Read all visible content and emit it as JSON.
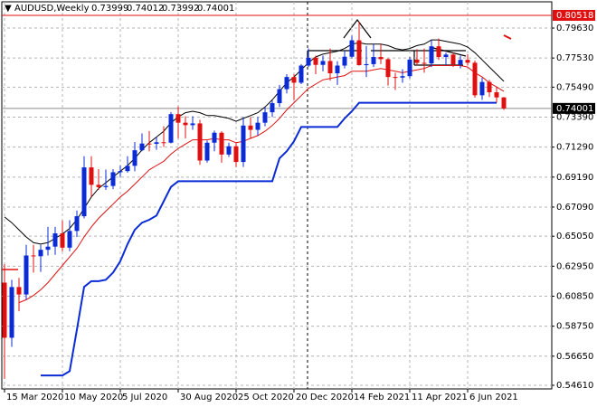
{
  "chart_data": {
    "type": "candlestick",
    "symbol": "AUDUSD,Weekly",
    "quote": [
      0.73999,
      0.74012,
      0.73992,
      0.74001
    ],
    "bull_color": "#0a2bd6",
    "bear_color": "#e01010",
    "grid": true,
    "ylim": [
      0.54357,
      0.81466
    ],
    "xlim": [
      -0.375,
      75.625
    ],
    "yticks": [
      {
        "value": 0.7963,
        "label": "0.79630"
      },
      {
        "value": 0.7753,
        "label": "0.77530"
      },
      {
        "value": 0.7549,
        "label": "0.75490"
      },
      {
        "value": 0.7339,
        "label": "0.73390"
      },
      {
        "value": 0.7129,
        "label": "0.71290"
      },
      {
        "value": 0.6919,
        "label": "0.69190"
      },
      {
        "value": 0.6709,
        "label": "0.67090"
      },
      {
        "value": 0.6505,
        "label": "0.65050"
      },
      {
        "value": 0.6295,
        "label": "0.62950"
      },
      {
        "value": 0.6085,
        "label": "0.60850"
      },
      {
        "value": 0.5875,
        "label": "0.58750"
      },
      {
        "value": 0.5665,
        "label": "0.56650"
      },
      {
        "value": 0.5461,
        "label": "0.54610"
      }
    ],
    "xticks": [
      {
        "value": 0,
        "label": "15 Mar 2020"
      },
      {
        "value": 8,
        "label": "10 May 2020"
      },
      {
        "value": 16,
        "label": "5 Jul 2020"
      },
      {
        "value": 24,
        "label": "30 Aug 2020"
      },
      {
        "value": 32,
        "label": "25 Oct 2020"
      },
      {
        "value": 40,
        "label": "20 Dec 2020"
      },
      {
        "value": 48,
        "label": "14 Feb 2021"
      },
      {
        "value": 56,
        "label": "11 Apr 2021"
      },
      {
        "value": 64,
        "label": "6 Jun 2021"
      }
    ],
    "open": [
      0.618,
      0.5794,
      0.6149,
      0.6097,
      0.637,
      0.6365,
      0.641,
      0.6432,
      0.6525,
      0.6425,
      0.6542,
      0.6645,
      0.6987,
      0.6865,
      0.6849,
      0.6857,
      0.6953,
      0.6961,
      0.6998,
      0.7107,
      0.7154,
      0.7152,
      0.7163,
      0.716,
      0.736,
      0.73,
      0.7283,
      0.7295,
      0.7035,
      0.716,
      0.723,
      0.7077,
      0.7135,
      0.7025,
      0.728,
      0.725,
      0.73,
      0.7373,
      0.7437,
      0.7535,
      0.762,
      0.758,
      0.77,
      0.7755,
      0.7705,
      0.7732,
      0.7646,
      0.77,
      0.7762,
      0.7877,
      0.7703,
      0.771,
      0.776,
      0.7745,
      0.762,
      0.7616,
      0.7626,
      0.7742,
      0.7719,
      0.7715,
      0.7835,
      0.776,
      0.7777,
      0.7708,
      0.774,
      0.772,
      0.7492,
      0.7585,
      0.7513,
      0.7477
    ],
    "high": [
      0.631,
      0.62,
      0.6213,
      0.6445,
      0.6445,
      0.6445,
      0.657,
      0.657,
      0.6615,
      0.6617,
      0.6685,
      0.7065,
      0.7065,
      0.6975,
      0.6972,
      0.6975,
      0.7,
      0.7065,
      0.7165,
      0.7225,
      0.7242,
      0.72,
      0.7275,
      0.7375,
      0.7414,
      0.7345,
      0.7345,
      0.732,
      0.7175,
      0.7245,
      0.724,
      0.716,
      0.716,
      0.734,
      0.734,
      0.734,
      0.741,
      0.7455,
      0.7565,
      0.764,
      0.764,
      0.771,
      0.782,
      0.777,
      0.777,
      0.782,
      0.773,
      0.7805,
      0.791,
      0.8007,
      0.7837,
      0.785,
      0.785,
      0.775,
      0.765,
      0.7675,
      0.776,
      0.7815,
      0.782,
      0.788,
      0.789,
      0.779,
      0.779,
      0.777,
      0.778,
      0.7735,
      0.7615,
      0.76,
      0.755,
      0.748
    ],
    "low": [
      0.5506,
      0.573,
      0.598,
      0.606,
      0.625,
      0.6255,
      0.637,
      0.6375,
      0.64,
      0.64,
      0.65,
      0.663,
      0.678,
      0.683,
      0.683,
      0.6835,
      0.692,
      0.695,
      0.696,
      0.71,
      0.71,
      0.711,
      0.713,
      0.7155,
      0.719,
      0.719,
      0.725,
      0.7005,
      0.702,
      0.71,
      0.702,
      0.706,
      0.699,
      0.699,
      0.719,
      0.721,
      0.7275,
      0.734,
      0.741,
      0.7505,
      0.746,
      0.757,
      0.769,
      0.764,
      0.766,
      0.7595,
      0.7565,
      0.768,
      0.775,
      0.77,
      0.762,
      0.769,
      0.771,
      0.756,
      0.753,
      0.758,
      0.761,
      0.77,
      0.765,
      0.769,
      0.774,
      0.77,
      0.769,
      0.768,
      0.77,
      0.7475,
      0.746,
      0.748,
      0.744,
      0.739
    ],
    "close": [
      0.5794,
      0.6149,
      0.6097,
      0.637,
      0.6365,
      0.641,
      0.6432,
      0.6525,
      0.6425,
      0.6542,
      0.6645,
      0.6987,
      0.6865,
      0.6849,
      0.6857,
      0.6953,
      0.6961,
      0.6998,
      0.7107,
      0.7154,
      0.7152,
      0.7163,
      0.716,
      0.736,
      0.73,
      0.7283,
      0.7295,
      0.7035,
      0.716,
      0.723,
      0.7077,
      0.7135,
      0.7025,
      0.728,
      0.725,
      0.73,
      0.7373,
      0.7437,
      0.7535,
      0.762,
      0.758,
      0.77,
      0.7755,
      0.7705,
      0.7732,
      0.7646,
      0.77,
      0.7762,
      0.7877,
      0.7703,
      0.771,
      0.776,
      0.7745,
      0.762,
      0.7616,
      0.7626,
      0.7742,
      0.7719,
      0.7715,
      0.7835,
      0.776,
      0.7777,
      0.7708,
      0.774,
      0.772,
      0.7492,
      0.7585,
      0.7513,
      0.7477,
      0.74
    ],
    "lines": [
      {
        "color": "#000000",
        "width": 1,
        "values": [
          0.664,
          0.66,
          0.655,
          0.65,
          0.646,
          0.645,
          0.646,
          0.649,
          0.652,
          0.656,
          0.662,
          0.67,
          0.678,
          0.684,
          0.688,
          0.692,
          0.696,
          0.7,
          0.705,
          0.711,
          0.716,
          0.72,
          0.724,
          0.73,
          0.734,
          0.737,
          0.738,
          0.737,
          0.735,
          0.735,
          0.734,
          0.733,
          0.731,
          0.733,
          0.735,
          0.737,
          0.741,
          0.746,
          0.752,
          0.758,
          0.762,
          0.767,
          0.772,
          0.776,
          0.778,
          0.779,
          0.78,
          0.782,
          0.785,
          0.786,
          0.785,
          0.785,
          0.785,
          0.784,
          0.782,
          0.781,
          0.782,
          0.784,
          0.785,
          0.788,
          0.788,
          0.787,
          0.786,
          0.785,
          0.783,
          0.779,
          0.774,
          0.769,
          0.764,
          0.759
        ]
      },
      {
        "color": "#e01010",
        "width": 1,
        "values": [
          null,
          null,
          0.604,
          0.606,
          0.609,
          0.613,
          0.618,
          0.624,
          0.63,
          0.636,
          0.642,
          0.65,
          0.657,
          0.663,
          0.668,
          0.673,
          0.678,
          0.682,
          0.687,
          0.692,
          0.697,
          0.7,
          0.703,
          0.708,
          0.712,
          0.715,
          0.718,
          0.718,
          0.718,
          0.719,
          0.718,
          0.718,
          0.716,
          0.717,
          0.719,
          0.721,
          0.724,
          0.728,
          0.733,
          0.739,
          0.744,
          0.749,
          0.754,
          0.757,
          0.76,
          0.761,
          0.762,
          0.763,
          0.766,
          0.766,
          0.766,
          0.767,
          0.768,
          0.767,
          0.766,
          0.765,
          0.766,
          0.767,
          0.768,
          0.77,
          0.77,
          0.77,
          0.77,
          0.77,
          0.769,
          0.765,
          0.762,
          0.758,
          0.755,
          0.752
        ]
      },
      {
        "color": "#0a2bd6",
        "width": 2,
        "values": [
          null,
          null,
          null,
          null,
          null,
          0.553,
          0.553,
          0.553,
          0.553,
          0.556,
          0.585,
          0.615,
          0.619,
          0.619,
          0.62,
          0.625,
          0.633,
          0.645,
          0.655,
          0.66,
          0.662,
          0.665,
          0.675,
          0.685,
          0.689,
          0.689,
          0.689,
          0.689,
          0.689,
          0.689,
          0.689,
          0.689,
          0.689,
          0.689,
          0.689,
          0.689,
          0.689,
          0.689,
          0.705,
          0.71,
          0.717,
          0.727,
          0.727,
          0.727,
          0.727,
          0.727,
          0.727,
          0.733,
          0.738,
          0.744,
          0.744,
          0.744,
          0.744,
          0.744,
          0.744,
          0.744,
          0.744,
          0.744,
          0.744,
          0.744,
          0.744,
          0.744,
          0.744,
          0.744,
          0.744,
          0.744,
          0.744,
          0.744,
          0.744,
          null
        ]
      }
    ],
    "hlines": [
      {
        "value": 0.80518,
        "color": "#e01010",
        "label_bg": "#e01010",
        "label_fg": "#ffffff"
      },
      {
        "value": 0.74001,
        "color": "#8c8c8c",
        "label_bg": "#000000",
        "label_fg": "#ffffff"
      }
    ]
  }
}
